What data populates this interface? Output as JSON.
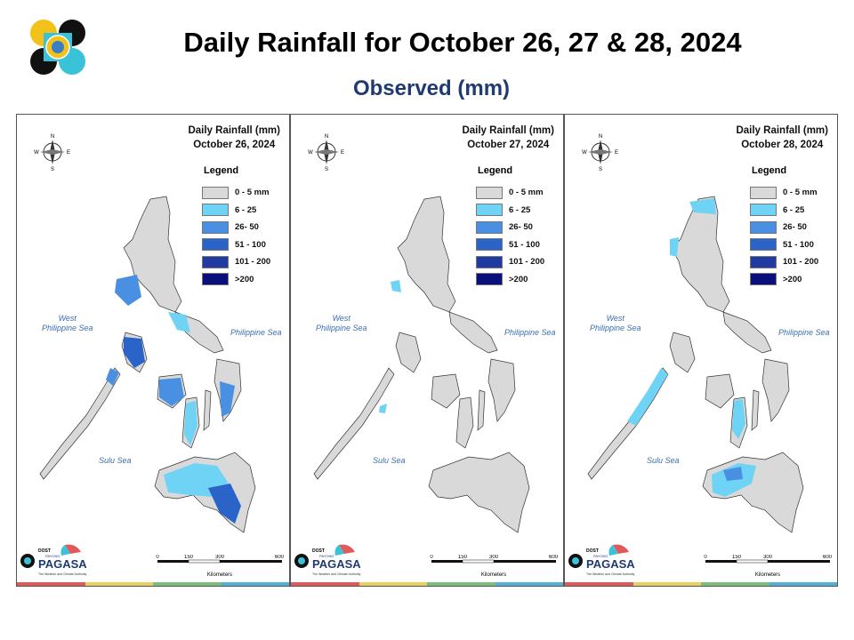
{
  "header": {
    "title": "Daily Rainfall for October 26, 27 & 28, 2024",
    "subtitle": "Observed (mm)"
  },
  "legend": {
    "title": "Legend",
    "items": [
      {
        "label": "0 - 5 mm",
        "color": "#d9d9d9"
      },
      {
        "label": "6 - 25",
        "color": "#6fd3f5"
      },
      {
        "label": "26- 50",
        "color": "#4a90e2"
      },
      {
        "label": "51 - 100",
        "color": "#2a64c8"
      },
      {
        "label": "101 - 200",
        "color": "#1f3aa0"
      },
      {
        "label": ">200",
        "color": "#0a0f7a"
      }
    ]
  },
  "panels": [
    {
      "heading": "Daily Rainfall (mm)",
      "date": "October 26, 2024"
    },
    {
      "heading": "Daily Rainfall (mm)",
      "date": "October 27, 2024"
    },
    {
      "heading": "Daily Rainfall (mm)",
      "date": "October 28, 2024"
    }
  ],
  "labels": {
    "west_sea_line1": "West",
    "west_sea_line2": "Philippine Sea",
    "east_sea": "Philippine Sea",
    "sulu_sea": "Sulu Sea",
    "compass_n": "N",
    "compass_s": "S",
    "compass_e": "E",
    "compass_w": "W",
    "scale_0": "0",
    "scale_150": "150",
    "scale_300": "300",
    "scale_600": "600",
    "scale_unit": "Kilometers",
    "brand_top": "DOST",
    "brand_small": "PAYONG",
    "brand_name": "PAGASA",
    "brand_tag": "The Weather and Climate Authority"
  },
  "colors": {
    "title": "#000000",
    "subtitle": "#1f3a73",
    "sea_label": "#3a6fb0",
    "strip": [
      "#e05a5a",
      "#e8d060",
      "#7bbf7a",
      "#4fb0d8"
    ]
  },
  "icons": {
    "logo": "dost-logo",
    "compass": "compass-rose-icon",
    "brand": "pagasa-logo"
  }
}
